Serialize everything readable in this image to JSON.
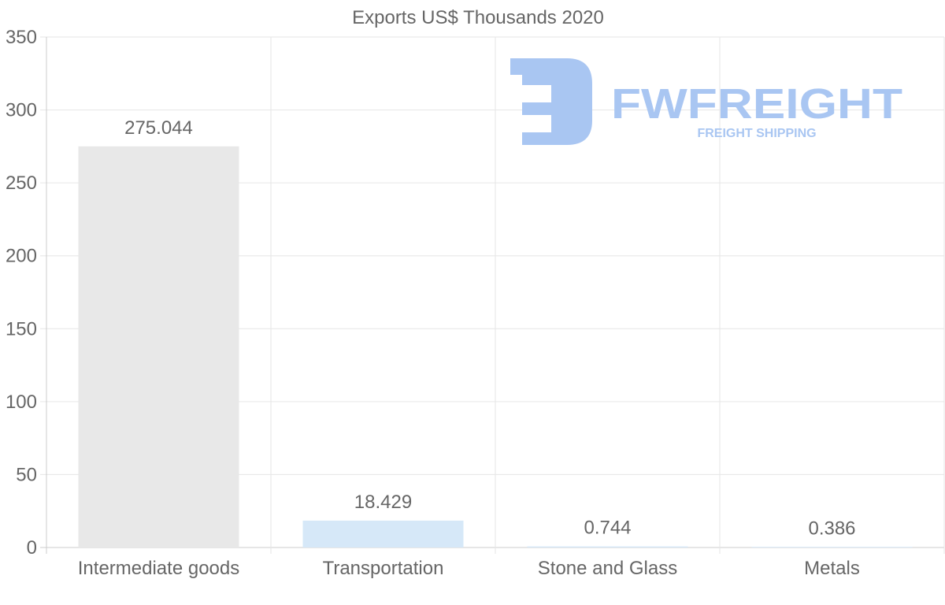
{
  "chart_data": {
    "type": "bar",
    "title": "Exports US$ Thousands 2020",
    "categories": [
      "Intermediate goods",
      "Transportation",
      "Stone and Glass",
      "Metals"
    ],
    "values": [
      275.044,
      18.429,
      0.744,
      0.386
    ],
    "value_labels": [
      "275.044",
      "18.429",
      "0.744",
      "0.386"
    ],
    "bar_colors": [
      "#e8e8e8",
      "#d6e8f8",
      "#d6e8f8",
      "#d6e8f8"
    ],
    "xlabel": "",
    "ylabel": "",
    "ylim": [
      0,
      350
    ],
    "yticks": [
      0,
      50,
      100,
      150,
      200,
      250,
      300,
      350
    ],
    "grid": true,
    "legend": "none"
  },
  "watermark": {
    "brand": "FWFREIGHT",
    "tagline": "FREIGHT SHIPPING",
    "color": "#a9c6f2"
  },
  "colors": {
    "grid": "#e6e6e6",
    "axis": "#cccccc",
    "text": "#666666"
  }
}
